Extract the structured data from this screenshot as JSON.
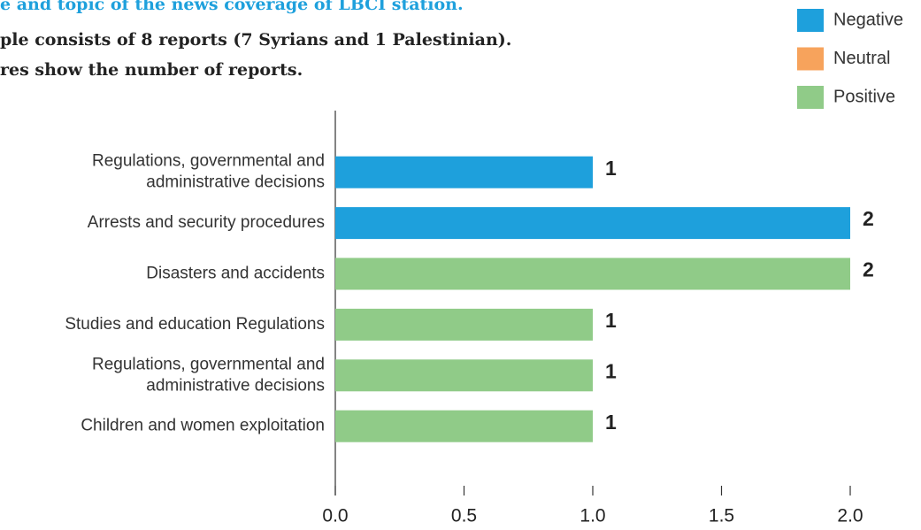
{
  "chart_data": {
    "type": "bar",
    "orientation": "horizontal",
    "title": "e and topic of the news coverage of LBCI station.",
    "subtitle": [
      "ple consists of 8 reports (7 Syrians and 1 Palestinian).",
      "res show the number of reports."
    ],
    "categories": [
      "Regulations, governmental and\nadministrative decisions",
      "Arrests and security procedures",
      "Disasters and accidents",
      "Studies and education Regulations",
      "Regulations, governmental and\nadministrative decisions",
      "Children and women exploitation"
    ],
    "series": [
      {
        "name": "Negative",
        "color": "#1ea0dc",
        "values": [
          1,
          2,
          null,
          null,
          null,
          null
        ]
      },
      {
        "name": "Neutral",
        "color": "#f7a35c",
        "values": [
          null,
          null,
          null,
          null,
          null,
          null
        ]
      },
      {
        "name": "Positive",
        "color": "#90cb88",
        "values": [
          null,
          null,
          2,
          1,
          1,
          1
        ]
      }
    ],
    "xlim": [
      0,
      2
    ],
    "xticks": [
      {
        "value": 0,
        "label": "0.0"
      },
      {
        "value": 0.5,
        "label": "0.5"
      },
      {
        "value": 1,
        "label": "1.0"
      },
      {
        "value": 1.5,
        "label": "1.5"
      },
      {
        "value": 2,
        "label": "2.0"
      }
    ],
    "legend": "top-right",
    "show_values": true
  }
}
